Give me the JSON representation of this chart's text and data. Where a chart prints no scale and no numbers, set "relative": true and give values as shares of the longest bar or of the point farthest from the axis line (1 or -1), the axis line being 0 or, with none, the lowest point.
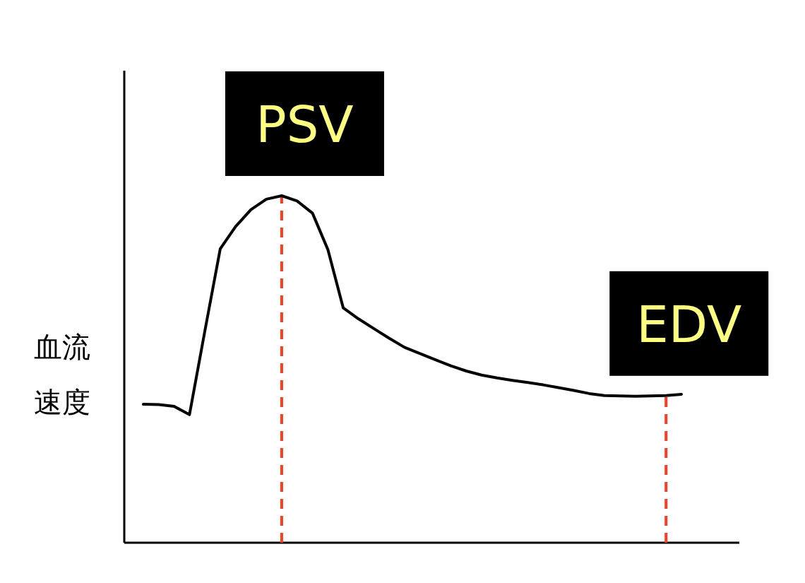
{
  "chart_data": {
    "type": "line",
    "ylabel": "血流速度",
    "relative": true,
    "categories": [
      null,
      null,
      null,
      null,
      null,
      null,
      null,
      null,
      null,
      null,
      null,
      null,
      null,
      null,
      null,
      null,
      null,
      null,
      null,
      null,
      null,
      null,
      null,
      null,
      null,
      null,
      null,
      null,
      null,
      null,
      null,
      null,
      null,
      null,
      null,
      null
    ],
    "series": [
      {
        "color": "#000000",
        "values": [
          0.399,
          0.398,
          0.393,
          0.369,
          0.61,
          0.847,
          0.911,
          0.96,
          0.99,
          1,
          0.985,
          0.95,
          0.845,
          0.677,
          0.645,
          0.617,
          0.589,
          0.563,
          0.545,
          0.527,
          0.51,
          0.495,
          0.483,
          0.475,
          0.468,
          0.462,
          0.455,
          0.447,
          0.439,
          0.43,
          0.424,
          0.423,
          0.422,
          0.423,
          0.424,
          0.428
        ]
      }
    ],
    "annotations": [
      "PSV",
      "EDV"
    ]
  }
}
